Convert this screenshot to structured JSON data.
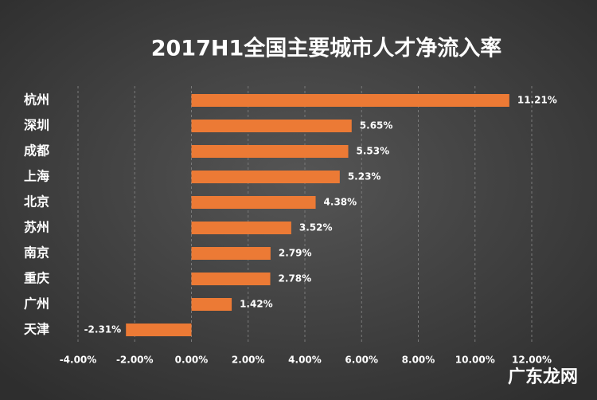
{
  "chart_data": {
    "type": "bar",
    "orientation": "horizontal",
    "title": "2017H1全国主要城市人才净流入率",
    "categories": [
      "杭州",
      "深圳",
      "成都",
      "上海",
      "北京",
      "苏州",
      "南京",
      "重庆",
      "广州",
      "天津"
    ],
    "values": [
      11.21,
      5.65,
      5.53,
      5.23,
      4.38,
      3.52,
      2.79,
      2.78,
      1.42,
      -2.31
    ],
    "value_labels": [
      "11.21%",
      "5.65%",
      "5.53%",
      "5.23%",
      "4.38%",
      "3.52%",
      "2.79%",
      "2.78%",
      "1.42%",
      "-2.31%"
    ],
    "color": "#ec7a35",
    "xlim": [
      -4,
      12
    ],
    "xticks": [
      {
        "value": -4,
        "label": "-4.00%"
      },
      {
        "value": -2,
        "label": "-2.00%"
      },
      {
        "value": 0,
        "label": "0.00%"
      },
      {
        "value": 2,
        "label": "2.00%"
      },
      {
        "value": 4,
        "label": "4.00%"
      },
      {
        "value": 6,
        "label": "6.00%"
      },
      {
        "value": 8,
        "label": "8.00%"
      },
      {
        "value": 10,
        "label": "10.00%"
      },
      {
        "value": 12,
        "label": "12.00%"
      }
    ],
    "grid": true,
    "watermark": "广东龙网"
  }
}
